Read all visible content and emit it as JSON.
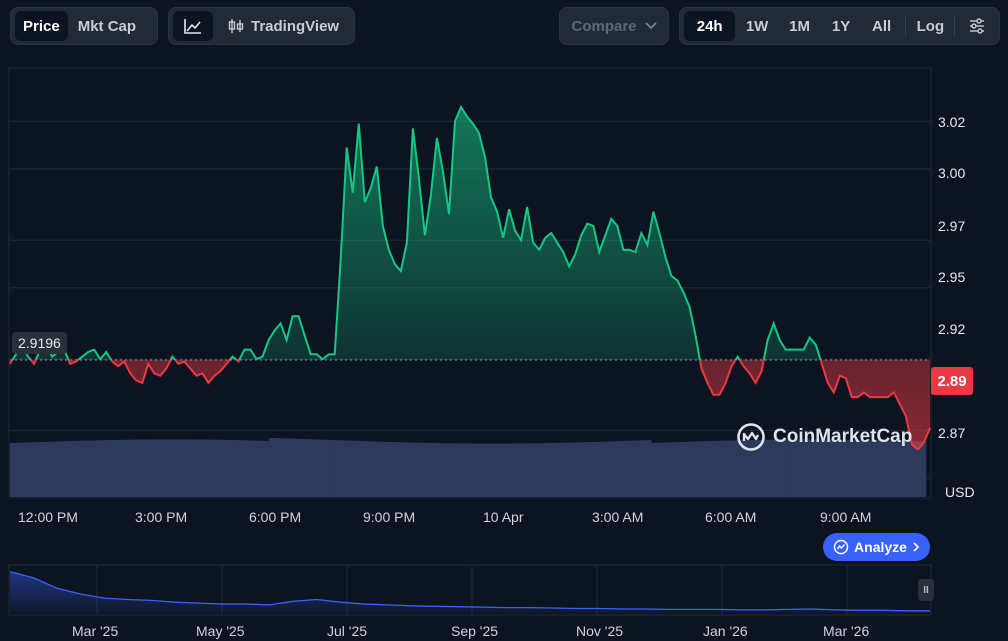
{
  "toolbar": {
    "metric_tabs": [
      {
        "label": "Price",
        "active": true
      },
      {
        "label": "Mkt Cap",
        "active": false
      }
    ],
    "chart_type": {
      "line_icon": "line-chart-icon",
      "tradingview_icon": "candlestick-icon",
      "tradingview_label": "TradingView"
    },
    "compare": {
      "label": "Compare",
      "icon": "chevron-down-icon"
    },
    "ranges": [
      {
        "label": "24h",
        "active": true
      },
      {
        "label": "1W"
      },
      {
        "label": "1M"
      },
      {
        "label": "1Y"
      },
      {
        "label": "All"
      }
    ],
    "log_label": "Log",
    "settings_icon": "sliders-icon"
  },
  "chart": {
    "reference_price": "2.9196",
    "current_price": "2.89",
    "currency": "USD",
    "watermark": "CoinMarketCap",
    "analyze_label": "Analyze",
    "colors": {
      "up": "#16c784",
      "down": "#ea3943",
      "volume": "#2e3a5c",
      "accent": "#3861fb"
    }
  },
  "chart_data": {
    "type": "line",
    "y_ticks": [
      "3.02",
      "3.00",
      "2.97",
      "2.95",
      "2.92",
      "2.89",
      "2.87"
    ],
    "x_ticks": [
      "12:00 PM",
      "3:00 PM",
      "6:00 PM",
      "9:00 PM",
      "10 Apr",
      "3:00 AM",
      "6:00 AM",
      "9:00 AM"
    ],
    "baseline": 2.9196,
    "ylim": [
      2.862,
      3.042
    ],
    "series": [
      {
        "values": [
          2.918,
          2.922,
          2.926,
          2.921,
          2.918,
          2.924,
          2.927,
          2.921,
          2.923,
          2.924,
          2.918,
          2.919,
          2.921,
          2.923,
          2.924,
          2.92,
          2.923,
          2.919,
          2.917,
          2.919,
          2.914,
          2.911,
          2.91,
          2.918,
          2.914,
          2.913,
          2.916,
          2.921,
          2.918,
          2.919,
          2.916,
          2.913,
          2.914,
          2.91,
          2.913,
          2.915,
          2.918,
          2.921,
          2.919,
          2.924,
          2.924,
          2.92,
          2.921,
          2.928,
          2.932,
          2.935,
          2.928,
          2.938,
          2.938,
          2.93,
          2.922,
          2.922,
          2.92,
          2.922,
          2.922,
          2.962,
          3.009,
          2.99,
          3.019,
          2.986,
          2.992,
          3.001,
          2.976,
          2.966,
          2.96,
          2.957,
          2.969,
          3.017,
          2.996,
          2.972,
          2.989,
          3.013,
          2.999,
          2.981,
          3.02,
          3.026,
          3.022,
          3.019,
          3.015,
          3.005,
          2.988,
          2.982,
          2.971,
          2.983,
          2.974,
          2.97,
          2.984,
          2.969,
          2.966,
          2.971,
          2.973,
          2.969,
          2.965,
          2.959,
          2.964,
          2.972,
          2.977,
          2.976,
          2.965,
          2.972,
          2.979,
          2.976,
          2.966,
          2.966,
          2.965,
          2.973,
          2.968,
          2.982,
          2.973,
          2.963,
          2.955,
          2.953,
          2.948,
          2.942,
          2.93,
          2.916,
          2.91,
          2.905,
          2.905,
          2.91,
          2.917,
          2.921,
          2.917,
          2.914,
          2.91,
          2.915,
          2.928,
          2.935,
          2.928,
          2.924,
          2.924,
          2.924,
          2.924,
          2.929,
          2.926,
          2.918,
          2.91,
          2.906,
          2.913,
          2.912,
          2.904,
          2.904,
          2.906,
          2.904,
          2.904,
          2.904,
          2.904,
          2.906,
          2.901,
          2.896,
          2.884,
          2.882,
          2.885,
          2.891
        ]
      }
    ]
  },
  "navigator": {
    "labels": [
      "Mar '25",
      "May '25",
      "Jul '25",
      "Sep '25",
      "Nov '25",
      "Jan '26",
      "Mar '26"
    ],
    "values": [
      0.92,
      0.78,
      0.55,
      0.42,
      0.33,
      0.3,
      0.28,
      0.24,
      0.22,
      0.2,
      0.2,
      0.18,
      0.26,
      0.3,
      0.24,
      0.2,
      0.18,
      0.16,
      0.15,
      0.14,
      0.13,
      0.12,
      0.12,
      0.11,
      0.1,
      0.1,
      0.09,
      0.09,
      0.08,
      0.08,
      0.08,
      0.07,
      0.07,
      0.08,
      0.09,
      0.07,
      0.06,
      0.06,
      0.05,
      0.05
    ]
  }
}
